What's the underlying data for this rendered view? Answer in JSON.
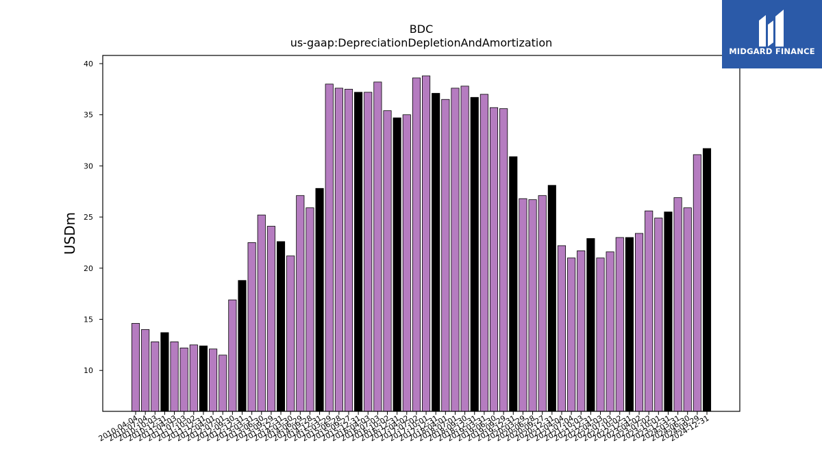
{
  "brand": {
    "name": "MIDGARD FINANCE",
    "color": "#2b5aa8"
  },
  "chart_data": {
    "type": "bar",
    "title": "BDC",
    "subtitle": "us-gaap:DepreciationDepletionAndAmortization",
    "ylabel": "USDm",
    "xlabel": "",
    "ylim": [
      6,
      40.8
    ],
    "yticks": [
      10,
      15,
      20,
      25,
      30,
      35,
      40
    ],
    "colors": {
      "quarter": "#b57cc0",
      "annual": "#000000"
    },
    "categories": [
      "2010-04-04",
      "2010-07-04",
      "2010-10-03",
      "2010-12-31",
      "2011-04-03",
      "2011-07-03",
      "2011-10-02",
      "2011-12-31",
      "2012-04-01",
      "2012-07-01",
      "2012-09-30",
      "2012-12-31",
      "2013-03-31",
      "2013-06-30",
      "2013-09-29",
      "2013-12-31",
      "2014-03-30",
      "2014-06-29",
      "2014-09-28",
      "2014-12-31",
      "2015-03-29",
      "2015-06-28",
      "2015-09-27",
      "2015-12-31",
      "2016-04-03",
      "2016-07-03",
      "2016-10-02",
      "2016-12-31",
      "2017-04-02",
      "2017-07-02",
      "2017-10-01",
      "2017-12-31",
      "2018-04-01",
      "2018-07-01",
      "2018-09-30",
      "2018-12-31",
      "2019-03-31",
      "2019-06-30",
      "2019-09-29",
      "2019-12-31",
      "2020-03-29",
      "2020-06-28",
      "2020-09-27",
      "2020-12-31",
      "2021-04-04",
      "2021-07-04",
      "2021-10-03",
      "2021-12-31",
      "2022-04-03",
      "2022-07-03",
      "2022-10-02",
      "2022-12-31",
      "2023-04-02",
      "2023-07-02",
      "2023-10-01",
      "2023-12-31",
      "2024-03-31",
      "2024-06-30",
      "2024-09-29",
      "2024-12-31"
    ],
    "values": [
      14.6,
      14.0,
      12.8,
      13.7,
      12.8,
      12.2,
      12.5,
      12.4,
      12.1,
      11.5,
      16.9,
      18.8,
      22.5,
      25.2,
      24.1,
      22.6,
      21.2,
      27.1,
      25.9,
      27.8,
      38.0,
      37.6,
      37.5,
      37.2,
      37.2,
      38.2,
      35.4,
      34.7,
      35.0,
      38.6,
      38.8,
      37.1,
      36.5,
      37.6,
      37.8,
      36.7,
      37.0,
      35.7,
      35.6,
      30.9,
      26.8,
      26.7,
      27.1,
      28.1,
      22.2,
      21.0,
      21.7,
      22.9,
      21.0,
      21.6,
      23.0,
      23.0,
      23.4,
      25.6,
      24.9,
      25.5,
      26.9,
      25.9,
      31.1,
      31.7
    ],
    "annual": [
      false,
      false,
      false,
      true,
      false,
      false,
      false,
      true,
      false,
      false,
      false,
      true,
      false,
      false,
      false,
      true,
      false,
      false,
      false,
      true,
      false,
      false,
      false,
      true,
      false,
      false,
      false,
      true,
      false,
      false,
      false,
      true,
      false,
      false,
      false,
      true,
      false,
      false,
      false,
      true,
      false,
      false,
      false,
      true,
      false,
      false,
      false,
      true,
      false,
      false,
      false,
      true,
      false,
      false,
      false,
      true,
      false,
      false,
      false,
      true
    ]
  }
}
